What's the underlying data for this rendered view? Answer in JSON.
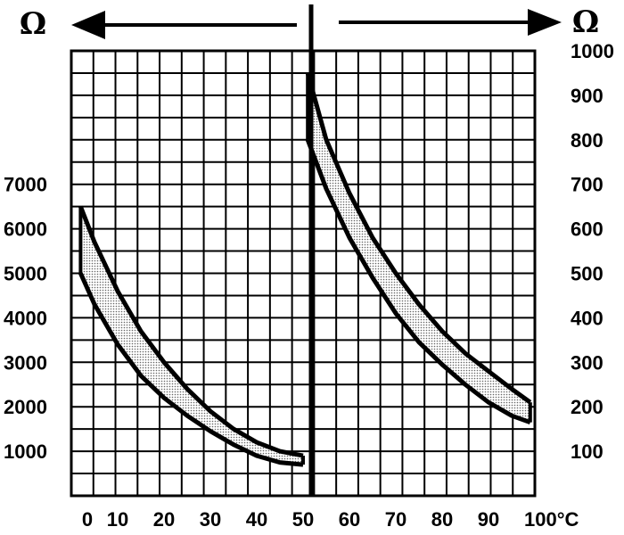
{
  "chart_data": {
    "type": "line",
    "unit_left": "Ω",
    "unit_right": "Ω",
    "x_ticks": [
      "0",
      "10",
      "20",
      "30",
      "40",
      "50",
      "60",
      "70",
      "80",
      "90",
      "100°C"
    ],
    "xlim": [
      0,
      100
    ],
    "y_left_ticks": [
      "7000",
      "6000",
      "5000",
      "4000",
      "3000",
      "2000",
      "1000"
    ],
    "y_left_lim": [
      0,
      10000
    ],
    "y_right_ticks": [
      "1000",
      "900",
      "800",
      "700",
      "600",
      "500",
      "400",
      "300",
      "200",
      "100"
    ],
    "y_right_lim": [
      0,
      1000
    ],
    "grid": true,
    "left_panel": {
      "x_range": [
        0,
        50
      ],
      "axis": "left",
      "upper_series": {
        "x": [
          2,
          5,
          10,
          15,
          20,
          25,
          30,
          35,
          40,
          45,
          50
        ],
        "y": [
          6500,
          5700,
          4600,
          3700,
          3000,
          2400,
          1900,
          1500,
          1200,
          1000,
          900
        ]
      },
      "lower_series": {
        "x": [
          2,
          5,
          10,
          15,
          20,
          25,
          30,
          35,
          40,
          45,
          50
        ],
        "y": [
          5000,
          4300,
          3400,
          2700,
          2200,
          1800,
          1450,
          1150,
          900,
          750,
          700
        ]
      }
    },
    "right_panel": {
      "x_range": [
        50,
        100
      ],
      "axis": "right",
      "upper_series": {
        "x": [
          51,
          55,
          60,
          65,
          70,
          75,
          80,
          85,
          90,
          95,
          99
        ],
        "y": [
          950,
          800,
          680,
          580,
          500,
          430,
          370,
          320,
          280,
          240,
          210
        ]
      },
      "lower_series": {
        "x": [
          51,
          55,
          60,
          65,
          70,
          75,
          80,
          85,
          90,
          95,
          99
        ],
        "y": [
          800,
          690,
          580,
          490,
          410,
          345,
          295,
          250,
          210,
          180,
          165
        ]
      }
    },
    "colors": {
      "line": "#000000",
      "band_fill": "#d4d4d4",
      "grid": "#000000",
      "background": "#ffffff"
    }
  }
}
